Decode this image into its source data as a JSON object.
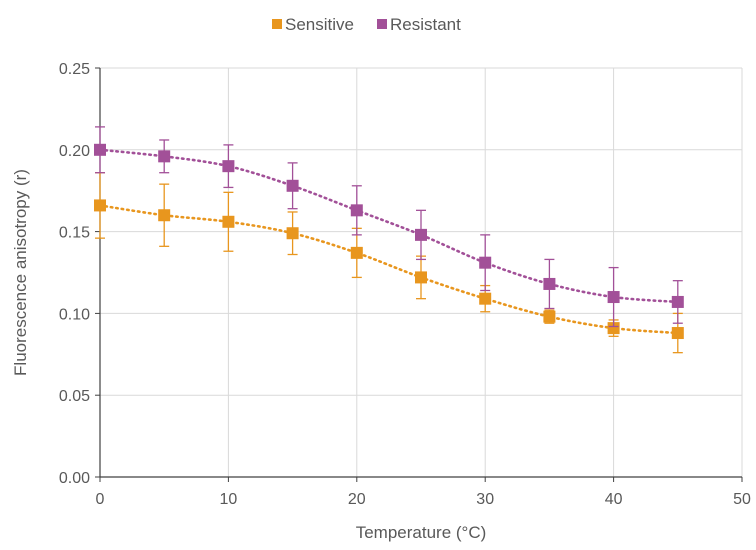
{
  "chart_data": {
    "type": "scatter",
    "title": "",
    "xlabel": "Temperature (°C)",
    "ylabel": "Fluorescence anisotropy (r)",
    "xlim": [
      0,
      50
    ],
    "ylim": [
      0,
      0.25
    ],
    "x_ticks": [
      "0",
      "10",
      "20",
      "30",
      "40",
      "50"
    ],
    "y_ticks": [
      "0.00",
      "0.05",
      "0.10",
      "0.15",
      "0.20",
      "0.25"
    ],
    "grid": true,
    "legend_position": "top-center",
    "x": [
      0,
      5,
      10,
      15,
      20,
      25,
      30,
      35,
      40,
      45
    ],
    "series": [
      {
        "name": "Sensitive",
        "color": "#E8961E",
        "marker": "square",
        "trendline": "dotted",
        "values": [
          0.166,
          0.16,
          0.156,
          0.149,
          0.137,
          0.122,
          0.109,
          0.098,
          0.091,
          0.088
        ],
        "error": [
          0.02,
          0.019,
          0.018,
          0.013,
          0.015,
          0.013,
          0.008,
          0.004,
          0.005,
          0.012
        ]
      },
      {
        "name": "Resistant",
        "color": "#A25098",
        "marker": "square",
        "trendline": "dotted",
        "values": [
          0.2,
          0.196,
          0.19,
          0.178,
          0.163,
          0.148,
          0.131,
          0.118,
          0.11,
          0.107
        ],
        "error": [
          0.014,
          0.01,
          0.013,
          0.014,
          0.015,
          0.015,
          0.017,
          0.015,
          0.018,
          0.013
        ]
      }
    ]
  }
}
